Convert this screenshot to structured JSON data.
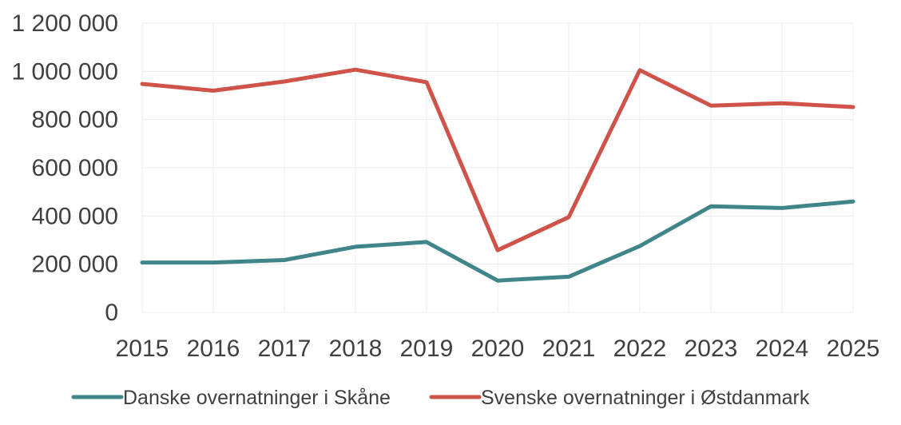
{
  "chart_data": {
    "type": "line",
    "title": "",
    "xlabel": "",
    "ylabel": "",
    "categories": [
      "2015",
      "2016",
      "2017",
      "2018",
      "2019",
      "2020",
      "2021",
      "2022",
      "2023",
      "2024",
      "2025"
    ],
    "ylim": [
      0,
      1200000
    ],
    "yticks": [
      0,
      200000,
      400000,
      600000,
      800000,
      1000000,
      1200000
    ],
    "ytick_labels": [
      "0",
      "200 000",
      "400 000",
      "600 000",
      "800 000",
      "1 000 000",
      "1 200 000"
    ],
    "grid": true,
    "legend_position": "bottom",
    "series": [
      {
        "name": "Danske overnatninger i Skåne",
        "color": "#3f8589",
        "values": [
          207000,
          207000,
          217000,
          272000,
          292000,
          132000,
          148000,
          275000,
          440000,
          433000,
          460000
        ]
      },
      {
        "name": "Svenske overnatninger i Østdanmark",
        "color": "#d0534a",
        "values": [
          948000,
          920000,
          958000,
          1007000,
          955000,
          258000,
          395000,
          1005000,
          858000,
          868000,
          852000
        ]
      }
    ]
  }
}
